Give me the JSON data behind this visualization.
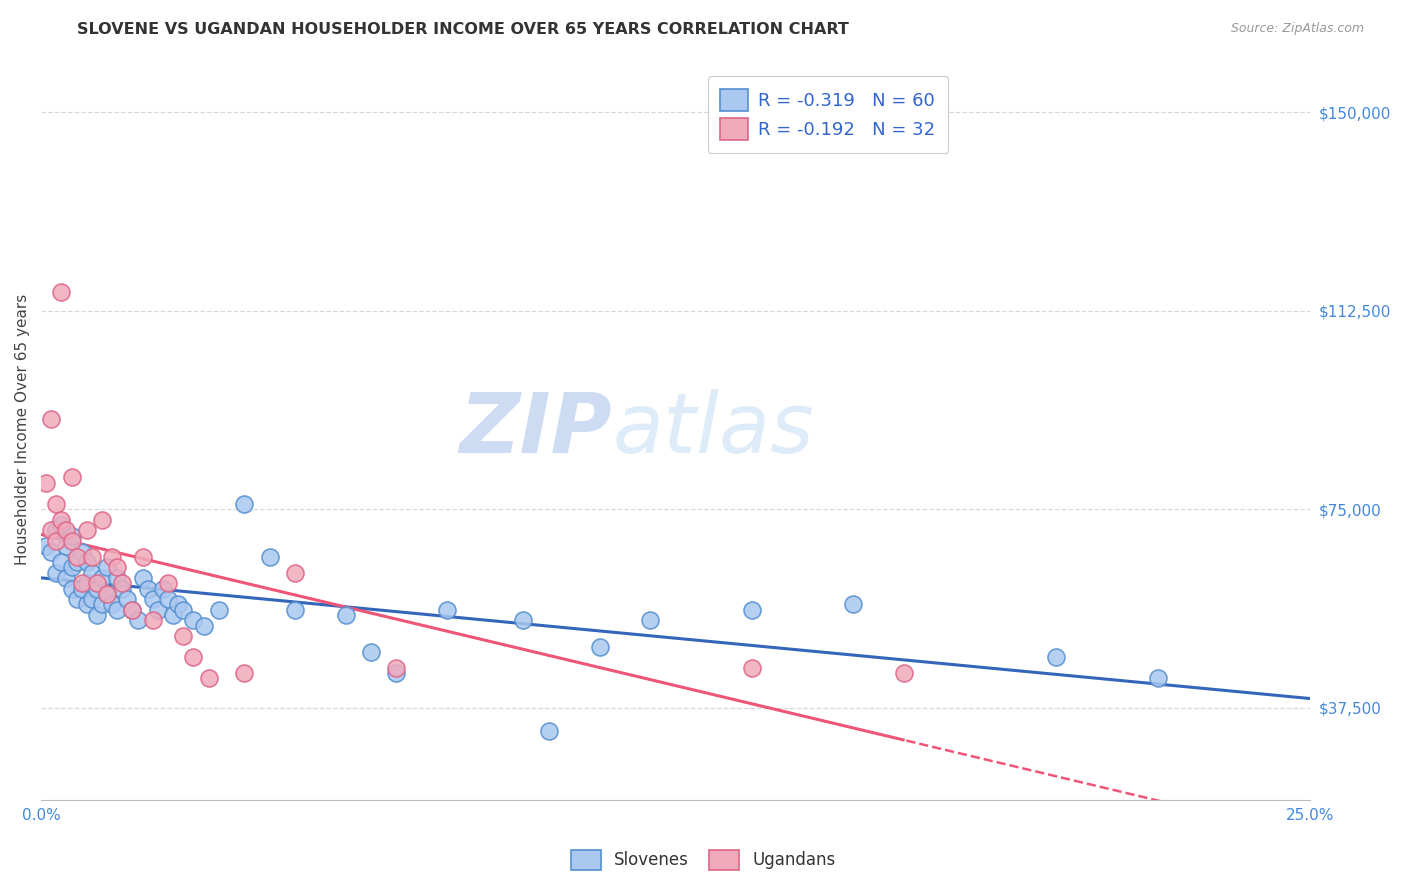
{
  "title": "SLOVENE VS UGANDAN HOUSEHOLDER INCOME OVER 65 YEARS CORRELATION CHART",
  "source": "Source: ZipAtlas.com",
  "ylabel": "Householder Income Over 65 years",
  "xlim": [
    0,
    0.25
  ],
  "ylim": [
    20000,
    160000
  ],
  "xtick_positions": [
    0.0,
    0.05,
    0.1,
    0.15,
    0.2,
    0.25
  ],
  "xtick_labels": [
    "0.0%",
    "",
    "",
    "",
    "",
    "25.0%"
  ],
  "ytick_labels": [
    "$37,500",
    "$75,000",
    "$112,500",
    "$150,000"
  ],
  "ytick_values": [
    37500,
    75000,
    112500,
    150000
  ],
  "background_color": "#ffffff",
  "grid_color": "#d8d8d8",
  "slovene_color": "#aac8f0",
  "ugandan_color": "#f0aabb",
  "slovene_edge_color": "#5590d0",
  "ugandan_edge_color": "#dd6688",
  "slovene_line_color": "#3366bb",
  "ugandan_line_color": "#ee5577",
  "axis_label_color": "#4488dd",
  "watermark_color": "#c0d8f0",
  "legend_text_color": "#3366cc",
  "slovene_x": [
    0.001,
    0.002,
    0.003,
    0.003,
    0.004,
    0.004,
    0.005,
    0.005,
    0.006,
    0.006,
    0.006,
    0.007,
    0.007,
    0.008,
    0.008,
    0.009,
    0.009,
    0.009,
    0.01,
    0.01,
    0.011,
    0.011,
    0.012,
    0.012,
    0.013,
    0.013,
    0.014,
    0.015,
    0.015,
    0.016,
    0.017,
    0.018,
    0.019,
    0.02,
    0.021,
    0.022,
    0.023,
    0.024,
    0.025,
    0.026,
    0.027,
    0.028,
    0.03,
    0.032,
    0.035,
    0.04,
    0.045,
    0.05,
    0.06,
    0.065,
    0.07,
    0.08,
    0.095,
    0.1,
    0.11,
    0.12,
    0.14,
    0.16,
    0.2,
    0.22
  ],
  "slovene_y": [
    68000,
    67000,
    71000,
    63000,
    72000,
    65000,
    68000,
    62000,
    70000,
    64000,
    60000,
    65000,
    58000,
    67000,
    60000,
    65000,
    61000,
    57000,
    63000,
    58000,
    60000,
    55000,
    62000,
    57000,
    64000,
    59000,
    57000,
    62000,
    56000,
    60000,
    58000,
    56000,
    54000,
    62000,
    60000,
    58000,
    56000,
    60000,
    58000,
    55000,
    57000,
    56000,
    54000,
    53000,
    56000,
    76000,
    66000,
    56000,
    55000,
    48000,
    44000,
    56000,
    54000,
    33000,
    49000,
    54000,
    56000,
    57000,
    47000,
    43000
  ],
  "ugandan_x": [
    0.001,
    0.002,
    0.002,
    0.003,
    0.003,
    0.004,
    0.004,
    0.005,
    0.006,
    0.006,
    0.007,
    0.008,
    0.009,
    0.01,
    0.011,
    0.012,
    0.013,
    0.014,
    0.015,
    0.016,
    0.018,
    0.02,
    0.022,
    0.025,
    0.028,
    0.03,
    0.033,
    0.04,
    0.05,
    0.07,
    0.14,
    0.17
  ],
  "ugandan_y": [
    80000,
    71000,
    92000,
    76000,
    69000,
    73000,
    116000,
    71000,
    81000,
    69000,
    66000,
    61000,
    71000,
    66000,
    61000,
    73000,
    59000,
    66000,
    64000,
    61000,
    56000,
    66000,
    54000,
    61000,
    51000,
    47000,
    43000,
    44000,
    63000,
    45000,
    45000,
    44000
  ]
}
